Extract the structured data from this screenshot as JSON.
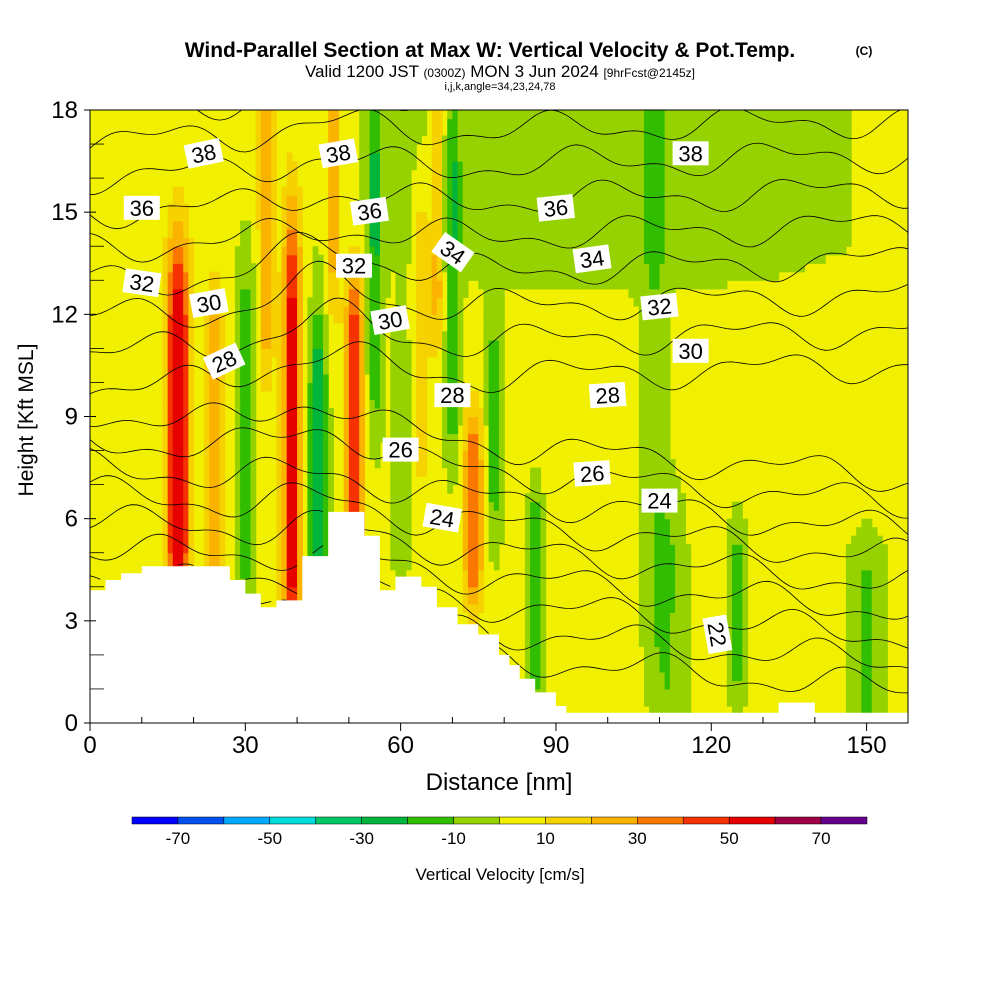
{
  "chart_data": {
    "type": "heatmap",
    "title": "Wind-Parallel Section at Max W: Vertical Velocity & Pot.Temp.",
    "title_mark": "(C)",
    "subtitle": {
      "valid_prefix": "Valid 1200 JST",
      "utc": "(0300Z)",
      "date": "MON 3 Jun 2024",
      "forecast": "[9hrFcst@2145z]",
      "indices": "i,j,k,angle=34,23,24,78"
    },
    "xlabel": "Distance [nm]",
    "ylabel": "Height [Kft MSL]",
    "xlim": [
      0,
      158
    ],
    "ylim": [
      0,
      18
    ],
    "x_ticks": [
      0,
      30,
      60,
      90,
      120,
      150
    ],
    "y_ticks": [
      0,
      3,
      6,
      9,
      12,
      15,
      18
    ],
    "colorbar": {
      "label": "Vertical Velocity [cm/s]",
      "boundaries": [
        -80,
        -70,
        -60,
        -50,
        -40,
        -30,
        -20,
        -10,
        0,
        10,
        20,
        30,
        40,
        50,
        60,
        70,
        80
      ],
      "tick_labels": [
        "-70",
        "-50",
        "-30",
        "-10",
        "10",
        "30",
        "50",
        "70"
      ],
      "tick_values": [
        -70,
        -50,
        -30,
        -10,
        10,
        30,
        50,
        70
      ],
      "colors": [
        "#0000ff",
        "#0050f0",
        "#00aaff",
        "#00dcdc",
        "#00c864",
        "#00b43c",
        "#32be00",
        "#96d200",
        "#f0f000",
        "#f5d200",
        "#fab400",
        "#fa7800",
        "#f53200",
        "#e60000",
        "#a00046",
        "#64008c"
      ]
    },
    "terrain_x": [
      0,
      3,
      6,
      10,
      20,
      27,
      30,
      33,
      36,
      41,
      46,
      49,
      53,
      56,
      59,
      64,
      67,
      71,
      75,
      79,
      81,
      83,
      86,
      90,
      92,
      96,
      100,
      104,
      108,
      112,
      116,
      121,
      125,
      130,
      133,
      136,
      140,
      145,
      150,
      158
    ],
    "terrain_y": [
      3.9,
      4.2,
      4.4,
      4.6,
      4.6,
      4.2,
      3.8,
      3.4,
      3.6,
      4.9,
      6.2,
      6.2,
      5.5,
      3.9,
      4.3,
      4.0,
      3.4,
      2.9,
      2.6,
      2.0,
      1.7,
      1.3,
      0.9,
      0.5,
      0.3,
      0.3,
      0.3,
      0.3,
      0.3,
      0.3,
      0.3,
      0.3,
      0.3,
      0.3,
      0.6,
      0.6,
      0.3,
      0.3,
      0.3,
      0.3
    ],
    "contour_levels": [
      21,
      22,
      23,
      24,
      25,
      26,
      27,
      28,
      29,
      30,
      31,
      32,
      33,
      34,
      35,
      36,
      37,
      38,
      39,
      40
    ],
    "contour_labels": [
      {
        "text": "38",
        "x": 22,
        "y": 16.7,
        "angle": 12
      },
      {
        "text": "38",
        "x": 48,
        "y": 16.7,
        "angle": 10
      },
      {
        "text": "38",
        "x": 116,
        "y": 16.7,
        "angle": 0
      },
      {
        "text": "36",
        "x": 10,
        "y": 15.1,
        "angle": 0
      },
      {
        "text": "36",
        "x": 54,
        "y": 15.0,
        "angle": 8
      },
      {
        "text": "36",
        "x": 90,
        "y": 15.1,
        "angle": 6
      },
      {
        "text": "34",
        "x": 70,
        "y": 13.8,
        "angle": -35
      },
      {
        "text": "34",
        "x": 97,
        "y": 13.6,
        "angle": 8
      },
      {
        "text": "32",
        "x": 10,
        "y": 12.9,
        "angle": -8
      },
      {
        "text": "32",
        "x": 51,
        "y": 13.4,
        "angle": 0
      },
      {
        "text": "32",
        "x": 110,
        "y": 12.2,
        "angle": 6
      },
      {
        "text": "30",
        "x": 23,
        "y": 12.3,
        "angle": 10
      },
      {
        "text": "30",
        "x": 58,
        "y": 11.8,
        "angle": 10
      },
      {
        "text": "30",
        "x": 116,
        "y": 10.9,
        "angle": 0
      },
      {
        "text": "28",
        "x": 26,
        "y": 10.6,
        "angle": 25
      },
      {
        "text": "28",
        "x": 70,
        "y": 9.6,
        "angle": 0
      },
      {
        "text": "28",
        "x": 100,
        "y": 9.6,
        "angle": 4
      },
      {
        "text": "26",
        "x": 60,
        "y": 8.0,
        "angle": 0
      },
      {
        "text": "26",
        "x": 97,
        "y": 7.3,
        "angle": 4
      },
      {
        "text": "24",
        "x": 68,
        "y": 6.0,
        "angle": -10
      },
      {
        "text": "24",
        "x": 110,
        "y": 6.5,
        "angle": 0
      },
      {
        "text": "22",
        "x": 121,
        "y": 2.6,
        "angle": -80
      }
    ]
  }
}
